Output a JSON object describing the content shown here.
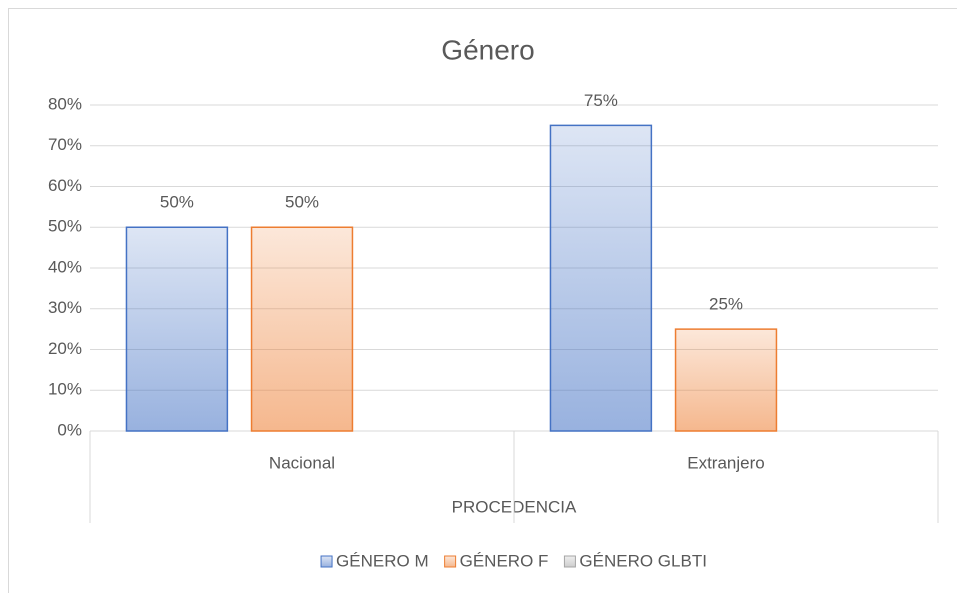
{
  "chart_data": {
    "type": "bar",
    "title": "Género",
    "x_label": "PROCEDENCIA",
    "categories": [
      "Nacional",
      "Extranjero"
    ],
    "series": [
      {
        "name": "GÉNERO M",
        "color": "#4472c4",
        "values": [
          50,
          75
        ],
        "value_labels": [
          "50%",
          "75%"
        ]
      },
      {
        "name": "GÉNERO F",
        "color": "#ed7d31",
        "values": [
          50,
          25
        ],
        "value_labels": [
          "50%",
          "25%"
        ]
      },
      {
        "name": "GÉNERO GLBTI",
        "color": "#a5a5a5",
        "values": [
          null,
          null
        ]
      }
    ],
    "ylim": [
      0,
      80
    ],
    "yticks": [
      {
        "value": 0,
        "label": "0%"
      },
      {
        "value": 10,
        "label": "10%"
      },
      {
        "value": 20,
        "label": "20%"
      },
      {
        "value": 30,
        "label": "30%"
      },
      {
        "value": 40,
        "label": "40%"
      },
      {
        "value": 50,
        "label": "50%"
      },
      {
        "value": 60,
        "label": "60%"
      },
      {
        "value": 70,
        "label": "70%"
      },
      {
        "value": 80,
        "label": "80%"
      }
    ],
    "grid": true,
    "legend": "bottom"
  }
}
